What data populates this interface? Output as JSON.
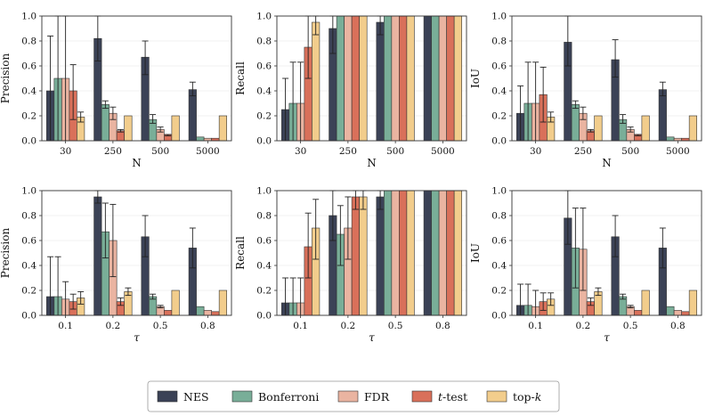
{
  "legend": {
    "placement": "bottom-center",
    "entries": [
      {
        "key": "nes",
        "label": "NES",
        "italic_prefix": "",
        "suffix": "",
        "color": "#3b4256"
      },
      {
        "key": "bonferroni",
        "label": "Bonferroni",
        "italic_prefix": "",
        "suffix": "",
        "color": "#79ae98"
      },
      {
        "key": "fdr",
        "label": "FDR",
        "italic_prefix": "",
        "suffix": "",
        "color": "#eab4a1"
      },
      {
        "key": "ttest",
        "label": "",
        "italic_prefix": "t",
        "suffix": "-test",
        "color": "#d9705a"
      },
      {
        "key": "topk",
        "label": "",
        "italic_prefix": "k",
        "prefix": "top-",
        "color": "#f2cd8c"
      }
    ]
  },
  "chart_data": [
    {
      "type": "bar",
      "xlabel": "N",
      "ylabel": "Precision",
      "ylim": [
        0,
        1
      ],
      "yticks": [
        "0.0",
        "0.2",
        "0.4",
        "0.6",
        "0.8",
        "1.0"
      ],
      "grid": true,
      "categories": [
        "30",
        "250",
        "500",
        "5000"
      ],
      "series": [
        {
          "key": "nes",
          "values": [
            0.4,
            0.82,
            0.67,
            0.41
          ],
          "err_low": [
            0.0,
            0.64,
            0.53,
            0.36
          ],
          "err_high": [
            0.84,
            1.0,
            0.8,
            0.47
          ]
        },
        {
          "key": "bonferroni",
          "values": [
            0.5,
            0.29,
            0.17,
            0.03
          ],
          "err_low": [
            0.0,
            0.26,
            0.14,
            0.03
          ],
          "err_high": [
            1.0,
            0.32,
            0.21,
            0.03
          ]
        },
        {
          "key": "fdr",
          "values": [
            0.5,
            0.22,
            0.09,
            0.02
          ],
          "err_low": [
            0.0,
            0.17,
            0.07,
            0.02
          ],
          "err_high": [
            1.0,
            0.27,
            0.11,
            0.02
          ]
        },
        {
          "key": "ttest",
          "values": [
            0.4,
            0.08,
            0.05,
            0.02
          ],
          "err_low": [
            0.17,
            0.07,
            0.04,
            0.02
          ],
          "err_high": [
            0.61,
            0.09,
            0.05,
            0.02
          ]
        },
        {
          "key": "topk",
          "values": [
            0.19,
            0.2,
            0.2,
            0.2
          ],
          "err_low": [
            0.15,
            0.2,
            0.2,
            0.2
          ],
          "err_high": [
            0.23,
            0.2,
            0.2,
            0.2
          ]
        }
      ]
    },
    {
      "type": "bar",
      "xlabel": "N",
      "ylabel": "Recall",
      "ylim": [
        0,
        1
      ],
      "yticks": [
        "0.0",
        "0.2",
        "0.4",
        "0.6",
        "0.8",
        "1.0"
      ],
      "grid": true,
      "categories": [
        "30",
        "250",
        "500",
        "5000"
      ],
      "series": [
        {
          "key": "nes",
          "values": [
            0.25,
            0.9,
            0.95,
            1.0
          ],
          "err_low": [
            0.0,
            0.7,
            0.85,
            1.0
          ],
          "err_high": [
            0.5,
            1.0,
            1.0,
            1.0
          ]
        },
        {
          "key": "bonferroni",
          "values": [
            0.3,
            1.0,
            1.0,
            1.0
          ],
          "err_low": [
            0.0,
            1.0,
            1.0,
            1.0
          ],
          "err_high": [
            0.63,
            1.0,
            1.0,
            1.0
          ]
        },
        {
          "key": "fdr",
          "values": [
            0.3,
            1.0,
            1.0,
            1.0
          ],
          "err_low": [
            0.0,
            1.0,
            1.0,
            1.0
          ],
          "err_high": [
            0.63,
            1.0,
            1.0,
            1.0
          ]
        },
        {
          "key": "ttest",
          "values": [
            0.75,
            1.0,
            1.0,
            1.0
          ],
          "err_low": [
            0.5,
            1.0,
            1.0,
            1.0
          ],
          "err_high": [
            1.0,
            1.0,
            1.0,
            1.0
          ]
        },
        {
          "key": "topk",
          "values": [
            0.95,
            1.0,
            1.0,
            1.0
          ],
          "err_low": [
            0.85,
            1.0,
            1.0,
            1.0
          ],
          "err_high": [
            1.0,
            1.0,
            1.0,
            1.0
          ]
        }
      ]
    },
    {
      "type": "bar",
      "xlabel": "N",
      "ylabel": "IoU",
      "ylim": [
        0,
        1
      ],
      "yticks": [
        "0.0",
        "0.2",
        "0.4",
        "0.6",
        "0.8",
        "1.0"
      ],
      "grid": true,
      "categories": [
        "30",
        "250",
        "500",
        "5000"
      ],
      "series": [
        {
          "key": "nes",
          "values": [
            0.22,
            0.79,
            0.65,
            0.41
          ],
          "err_low": [
            0.0,
            0.6,
            0.51,
            0.36
          ],
          "err_high": [
            0.44,
            1.0,
            0.81,
            0.47
          ]
        },
        {
          "key": "bonferroni",
          "values": [
            0.3,
            0.29,
            0.17,
            0.03
          ],
          "err_low": [
            0.0,
            0.26,
            0.14,
            0.03
          ],
          "err_high": [
            0.63,
            0.32,
            0.21,
            0.03
          ]
        },
        {
          "key": "fdr",
          "values": [
            0.3,
            0.22,
            0.09,
            0.02
          ],
          "err_low": [
            0.0,
            0.17,
            0.07,
            0.02
          ],
          "err_high": [
            0.63,
            0.27,
            0.11,
            0.02
          ]
        },
        {
          "key": "ttest",
          "values": [
            0.37,
            0.08,
            0.05,
            0.02
          ],
          "err_low": [
            0.15,
            0.07,
            0.04,
            0.02
          ],
          "err_high": [
            0.59,
            0.09,
            0.05,
            0.02
          ]
        },
        {
          "key": "topk",
          "values": [
            0.19,
            0.2,
            0.2,
            0.2
          ],
          "err_low": [
            0.15,
            0.2,
            0.2,
            0.2
          ],
          "err_high": [
            0.23,
            0.2,
            0.2,
            0.2
          ]
        }
      ]
    },
    {
      "type": "bar",
      "xlabel": "τ",
      "ylabel": "Precision",
      "ylim": [
        0,
        1
      ],
      "yticks": [
        "0.0",
        "0.2",
        "0.4",
        "0.6",
        "0.8",
        "1.0"
      ],
      "grid": true,
      "categories": [
        "0.1",
        "0.2",
        "0.5",
        "0.8"
      ],
      "series": [
        {
          "key": "nes",
          "values": [
            0.15,
            0.95,
            0.63,
            0.54
          ],
          "err_low": [
            0.0,
            0.9,
            0.47,
            0.38
          ],
          "err_high": [
            0.47,
            1.0,
            0.8,
            0.7
          ]
        },
        {
          "key": "bonferroni",
          "values": [
            0.15,
            0.67,
            0.15,
            0.07
          ],
          "err_low": [
            0.0,
            0.46,
            0.13,
            0.07
          ],
          "err_high": [
            0.47,
            0.9,
            0.17,
            0.07
          ]
        },
        {
          "key": "fdr",
          "values": [
            0.13,
            0.6,
            0.07,
            0.04
          ],
          "err_low": [
            0.0,
            0.31,
            0.06,
            0.04
          ],
          "err_high": [
            0.27,
            0.89,
            0.08,
            0.04
          ]
        },
        {
          "key": "ttest",
          "values": [
            0.11,
            0.11,
            0.04,
            0.03
          ],
          "err_low": [
            0.05,
            0.08,
            0.04,
            0.03
          ],
          "err_high": [
            0.17,
            0.14,
            0.04,
            0.03
          ]
        },
        {
          "key": "topk",
          "values": [
            0.14,
            0.19,
            0.2,
            0.2
          ],
          "err_low": [
            0.09,
            0.16,
            0.2,
            0.2
          ],
          "err_high": [
            0.19,
            0.22,
            0.2,
            0.2
          ]
        }
      ]
    },
    {
      "type": "bar",
      "xlabel": "τ",
      "ylabel": "Recall",
      "ylim": [
        0,
        1
      ],
      "yticks": [
        "0.0",
        "0.2",
        "0.4",
        "0.6",
        "0.8",
        "1.0"
      ],
      "grid": true,
      "categories": [
        "0.1",
        "0.2",
        "0.5",
        "0.8"
      ],
      "series": [
        {
          "key": "nes",
          "values": [
            0.1,
            0.8,
            0.95,
            1.0
          ],
          "err_low": [
            0.0,
            0.6,
            0.85,
            1.0
          ],
          "err_high": [
            0.3,
            1.0,
            1.0,
            1.0
          ]
        },
        {
          "key": "bonferroni",
          "values": [
            0.1,
            0.65,
            1.0,
            1.0
          ],
          "err_low": [
            0.0,
            0.4,
            1.0,
            1.0
          ],
          "err_high": [
            0.3,
            0.88,
            1.0,
            1.0
          ]
        },
        {
          "key": "fdr",
          "values": [
            0.1,
            0.7,
            1.0,
            1.0
          ],
          "err_low": [
            0.0,
            0.45,
            1.0,
            1.0
          ],
          "err_high": [
            0.3,
            0.95,
            1.0,
            1.0
          ]
        },
        {
          "key": "ttest",
          "values": [
            0.55,
            0.95,
            1.0,
            1.0
          ],
          "err_low": [
            0.3,
            0.85,
            1.0,
            1.0
          ],
          "err_high": [
            0.82,
            1.0,
            1.0,
            1.0
          ]
        },
        {
          "key": "topk",
          "values": [
            0.7,
            0.95,
            1.0,
            1.0
          ],
          "err_low": [
            0.45,
            0.85,
            1.0,
            1.0
          ],
          "err_high": [
            0.93,
            1.0,
            1.0,
            1.0
          ]
        }
      ]
    },
    {
      "type": "bar",
      "xlabel": "τ",
      "ylabel": "IoU",
      "ylim": [
        0,
        1
      ],
      "yticks": [
        "0.0",
        "0.2",
        "0.4",
        "0.6",
        "0.8",
        "1.0"
      ],
      "grid": true,
      "categories": [
        "0.1",
        "0.2",
        "0.5",
        "0.8"
      ],
      "series": [
        {
          "key": "nes",
          "values": [
            0.08,
            0.78,
            0.63,
            0.54
          ],
          "err_low": [
            0.0,
            0.57,
            0.47,
            0.38
          ],
          "err_high": [
            0.25,
            1.0,
            0.8,
            0.7
          ]
        },
        {
          "key": "bonferroni",
          "values": [
            0.08,
            0.54,
            0.15,
            0.07
          ],
          "err_low": [
            0.0,
            0.22,
            0.13,
            0.07
          ],
          "err_high": [
            0.25,
            0.86,
            0.17,
            0.07
          ]
        },
        {
          "key": "fdr",
          "values": [
            0.07,
            0.53,
            0.07,
            0.04
          ],
          "err_low": [
            0.0,
            0.2,
            0.06,
            0.04
          ],
          "err_high": [
            0.2,
            0.86,
            0.08,
            0.04
          ]
        },
        {
          "key": "ttest",
          "values": [
            0.11,
            0.11,
            0.04,
            0.03
          ],
          "err_low": [
            0.04,
            0.08,
            0.04,
            0.03
          ],
          "err_high": [
            0.18,
            0.14,
            0.04,
            0.03
          ]
        },
        {
          "key": "topk",
          "values": [
            0.13,
            0.19,
            0.2,
            0.2
          ],
          "err_low": [
            0.08,
            0.16,
            0.2,
            0.2
          ],
          "err_high": [
            0.18,
            0.22,
            0.2,
            0.2
          ]
        }
      ]
    }
  ]
}
